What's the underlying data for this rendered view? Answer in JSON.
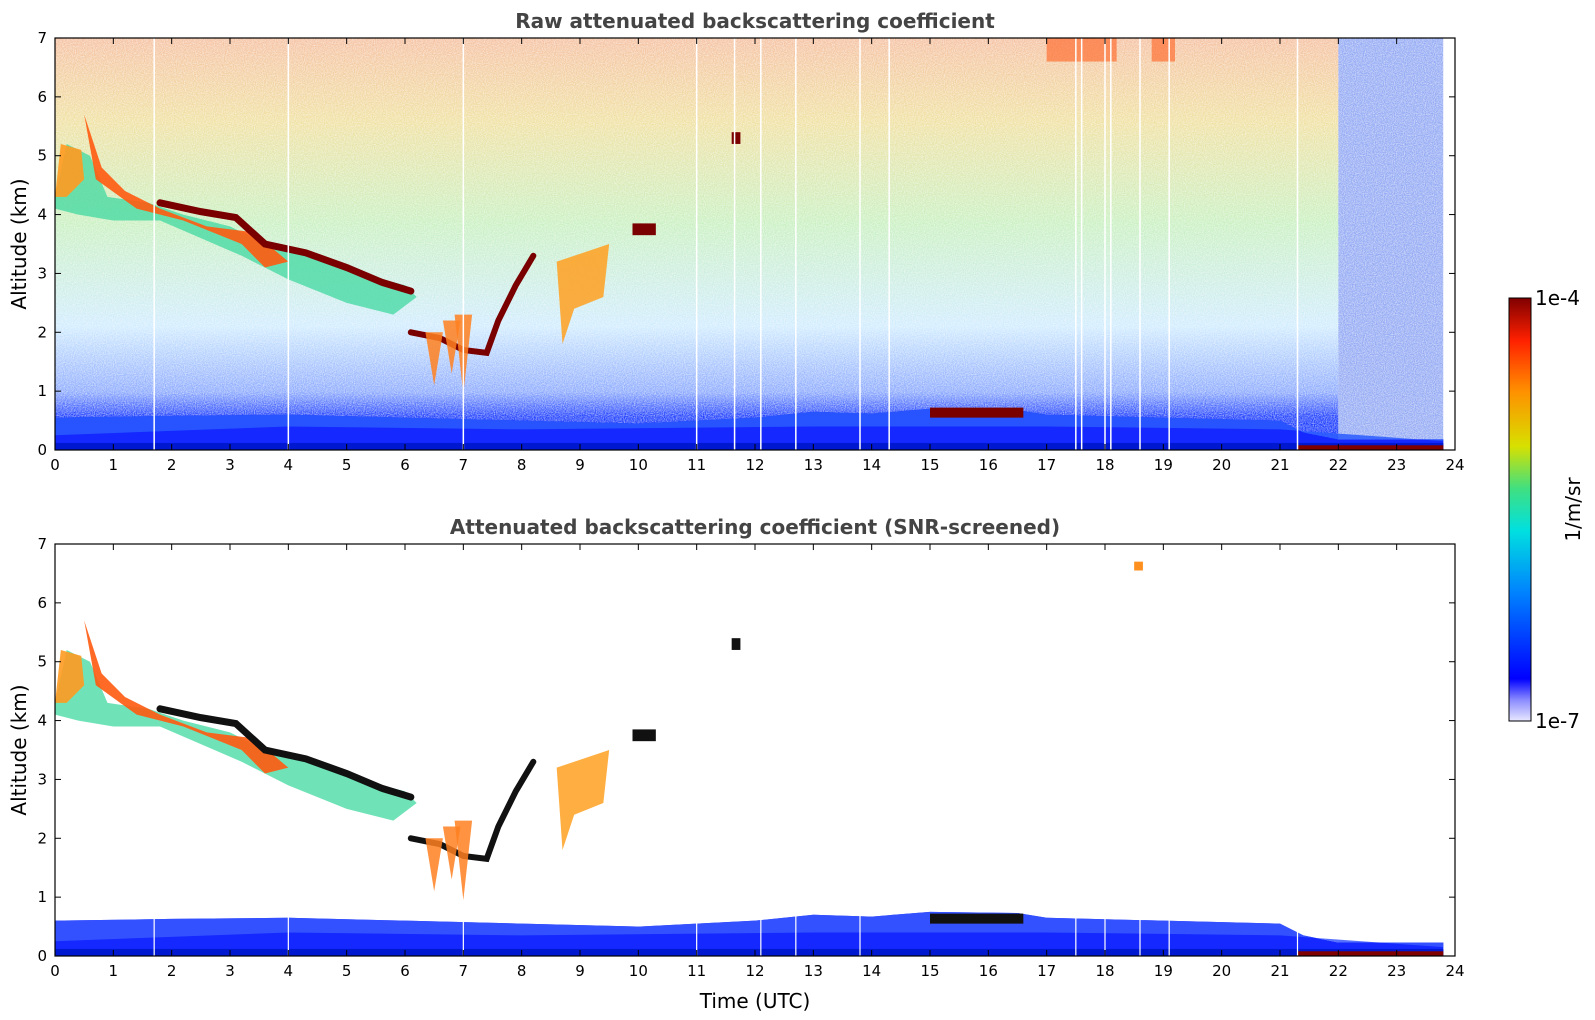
{
  "chart_data": [
    {
      "type": "heatmap",
      "title": "Raw attenuated backscattering coefficient",
      "xlabel": "",
      "ylabel": "Altitude (km)",
      "xlim": [
        0,
        24
      ],
      "ylim": [
        0,
        7
      ],
      "xticks": [
        "0",
        "1",
        "2",
        "3",
        "4",
        "5",
        "6",
        "7",
        "8",
        "9",
        "10",
        "11",
        "12",
        "13",
        "14",
        "15",
        "16",
        "17",
        "18",
        "19",
        "20",
        "21",
        "22",
        "23",
        "24"
      ],
      "yticks": [
        "0",
        "1",
        "2",
        "3",
        "4",
        "5",
        "6",
        "7"
      ],
      "features": [
        {
          "name": "boundary layer",
          "x": [
            0,
            23.8
          ],
          "y": [
            0,
            0.6
          ],
          "level": "low"
        },
        {
          "name": "elevated aerosol/cloud layer",
          "x": [
            0.3,
            6.2
          ],
          "y_start": 4.5,
          "y_end": 2.6,
          "level": "high"
        },
        {
          "name": "rising layer",
          "x": [
            6.2,
            8.2
          ],
          "y_start": 1.7,
          "y_end": 3.3,
          "level": "high"
        },
        {
          "name": "cloud near PBL top",
          "x": [
            15,
            16.6
          ],
          "y": [
            0.55,
            0.7
          ],
          "level": "very-high"
        },
        {
          "name": "noisy upper background",
          "x": [
            0,
            22
          ],
          "y": [
            1.5,
            7
          ],
          "level": "noise"
        }
      ]
    },
    {
      "type": "heatmap",
      "title": "Attenuated backscattering coefficient (SNR-screened)",
      "xlabel": "Time (UTC)",
      "ylabel": "Altitude (km)",
      "xlim": [
        0,
        24
      ],
      "ylim": [
        0,
        7
      ],
      "xticks": [
        "0",
        "1",
        "2",
        "3",
        "4",
        "5",
        "6",
        "7",
        "8",
        "9",
        "10",
        "11",
        "12",
        "13",
        "14",
        "15",
        "16",
        "17",
        "18",
        "19",
        "20",
        "21",
        "22",
        "23",
        "24"
      ],
      "yticks": [
        "0",
        "1",
        "2",
        "3",
        "4",
        "5",
        "6",
        "7"
      ],
      "features": [
        {
          "name": "boundary layer",
          "x": [
            0,
            23.8
          ],
          "y": [
            0,
            0.7
          ],
          "level": "low"
        },
        {
          "name": "elevated aerosol/cloud layer",
          "x": [
            0.3,
            6.2
          ],
          "y_start": 4.5,
          "y_end": 2.6,
          "level": "high"
        },
        {
          "name": "rising layer",
          "x": [
            6.2,
            8.2
          ],
          "y_start": 1.7,
          "y_end": 3.3,
          "level": "high"
        },
        {
          "name": "cloud near PBL top",
          "x": [
            15,
            16.6
          ],
          "y": [
            0.55,
            0.7
          ],
          "level": "very-high"
        }
      ]
    }
  ],
  "colorbar": {
    "max_label": "1e-4",
    "min_label": "1e-7",
    "unit_label": "1/m/sr",
    "colormap": "jet"
  }
}
